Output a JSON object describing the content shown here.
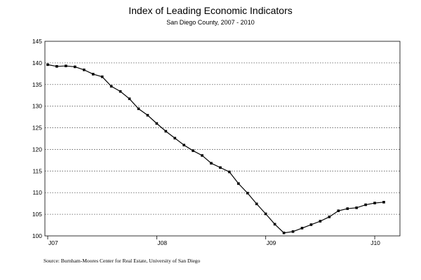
{
  "chart_data": {
    "type": "line",
    "title": "Index of Leading Economic Indicators",
    "subtitle": "San Diego County, 2007 - 2010",
    "source": "Source:  Burnham-Moores Center for Real Estate, University of San Diego",
    "xlabel": "",
    "ylabel": "",
    "ylim": [
      100,
      145
    ],
    "yticks": [
      100,
      105,
      110,
      115,
      120,
      125,
      130,
      135,
      140,
      145
    ],
    "x_tick_labels": [
      "J07",
      "J08",
      "J09",
      "J10"
    ],
    "grid": true,
    "legend": "none",
    "x": [
      "2007-01",
      "2007-02",
      "2007-03",
      "2007-04",
      "2007-05",
      "2007-06",
      "2007-07",
      "2007-08",
      "2007-09",
      "2007-10",
      "2007-11",
      "2007-12",
      "2008-01",
      "2008-02",
      "2008-03",
      "2008-04",
      "2008-05",
      "2008-06",
      "2008-07",
      "2008-08",
      "2008-09",
      "2008-10",
      "2008-11",
      "2008-12",
      "2009-01",
      "2009-02",
      "2009-03",
      "2009-04",
      "2009-05",
      "2009-06",
      "2009-07",
      "2009-08",
      "2009-09",
      "2009-10",
      "2009-11",
      "2009-12",
      "2010-01",
      "2010-02"
    ],
    "series": [
      {
        "values": [
          139.6,
          139.2,
          139.3,
          139.1,
          138.4,
          137.4,
          136.8,
          134.6,
          133.4,
          131.7,
          129.4,
          127.9,
          126.0,
          124.2,
          122.6,
          121.0,
          119.7,
          118.6,
          116.8,
          115.8,
          114.8,
          112.1,
          109.9,
          107.4,
          105.1,
          102.7,
          100.7,
          101.0,
          101.8,
          102.6,
          103.4,
          104.4,
          105.8,
          106.3,
          106.5,
          107.2,
          107.6,
          107.8
        ]
      }
    ]
  }
}
